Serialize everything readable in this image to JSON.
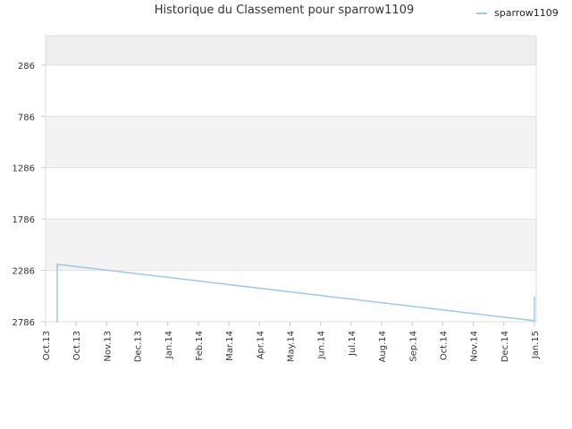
{
  "chart_data": {
    "type": "line",
    "title": "Historique du Classement pour sparrow1109",
    "xlabel": "",
    "ylabel": "",
    "y_inverted": true,
    "ylim": [
      0,
      2786
    ],
    "y_ticks": [
      286,
      786,
      1286,
      1786,
      2286,
      2786
    ],
    "x_tick_labels": [
      "Oct.13",
      "Oct.13",
      "Nov.13",
      "Dec.13",
      "Jan.14",
      "Feb.14",
      "Mar.14",
      "Apr.14",
      "May.14",
      "Jun.14",
      "Jul.14",
      "Aug.14",
      "Sep.14",
      "Oct.14",
      "Nov.14",
      "Dec.14",
      "Jan.15"
    ],
    "grid": true,
    "legend_position": "top-right",
    "series": [
      {
        "name": "sparrow1109",
        "color": "#9cc9ea",
        "points": [
          {
            "x": "Oct.13",
            "y": 2786
          },
          {
            "x": "Oct.13",
            "y": 2226
          },
          {
            "x": "Jan.15",
            "y": 2776
          },
          {
            "x": "Jan.15",
            "y": 2546
          }
        ]
      }
    ]
  }
}
